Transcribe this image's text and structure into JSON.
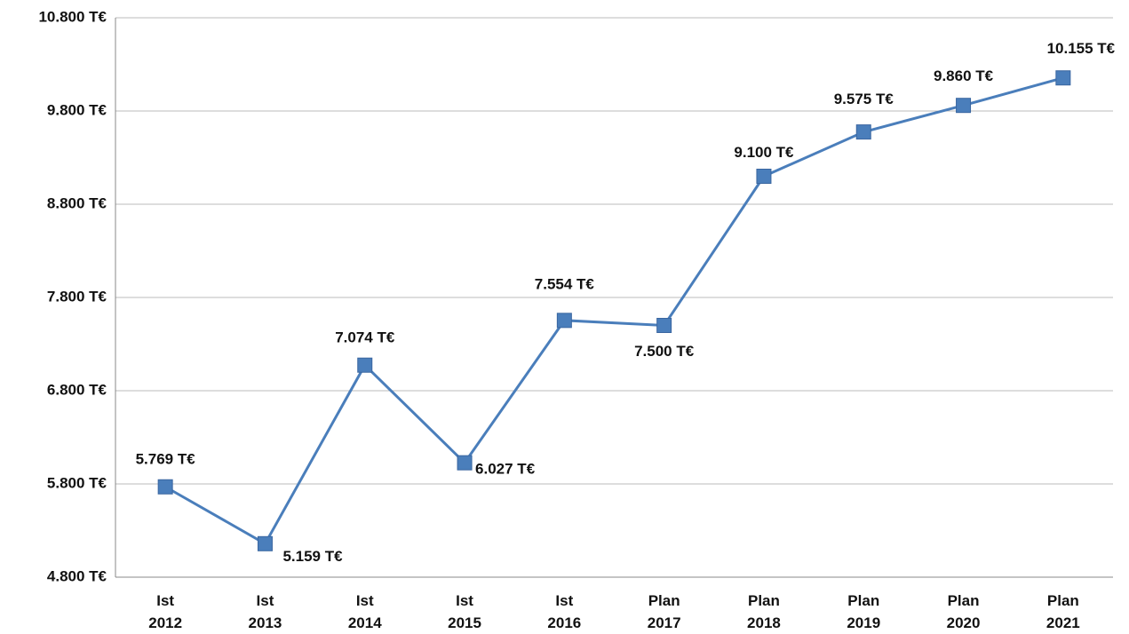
{
  "chart_data": {
    "type": "line",
    "categories": [
      "Ist 2012",
      "Ist 2013",
      "Ist 2014",
      "Ist 2015",
      "Ist 2016",
      "Plan 2017",
      "Plan 2018",
      "Plan 2019",
      "Plan 2020",
      "Plan 2021"
    ],
    "values": [
      5769,
      5159,
      7074,
      6027,
      7554,
      7500,
      9100,
      9575,
      9860,
      10155
    ],
    "value_labels": [
      "5.769 T€",
      "5.159 T€",
      "7.074 T€",
      "6.027 T€",
      "7.554 T€",
      "7.500 T€",
      "9.100 T€",
      "9.575 T€",
      "9.860 T€",
      "10.155 T€"
    ],
    "color": "#4a7ebb",
    "ylim": [
      4800,
      10800
    ],
    "yticks": [
      {
        "value": 4800,
        "label": "4.800 T€"
      },
      {
        "value": 5800,
        "label": "5.800 T€"
      },
      {
        "value": 6800,
        "label": "6.800 T€"
      },
      {
        "value": 7800,
        "label": "7.800 T€"
      },
      {
        "value": 8800,
        "label": "8.800 T€"
      },
      {
        "value": 9800,
        "label": "9.800 T€"
      },
      {
        "value": 10800,
        "label": "10.800 T€"
      }
    ],
    "grid": true
  }
}
